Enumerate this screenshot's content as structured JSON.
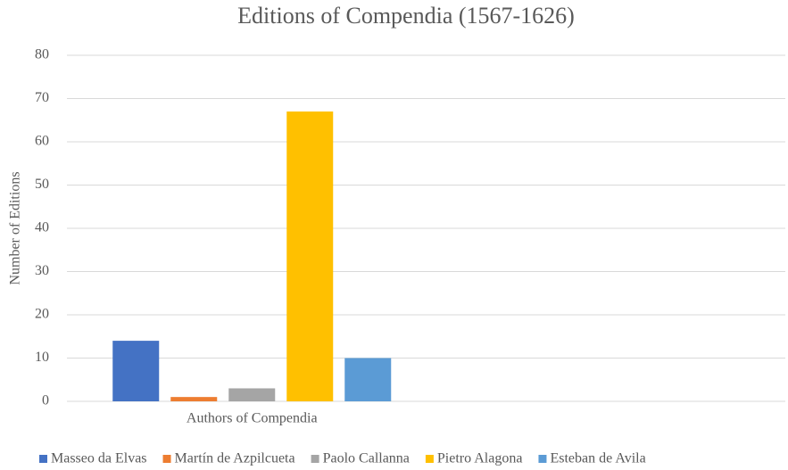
{
  "chart_data": {
    "type": "bar",
    "title": "Editions of Compendia (1567-1626)",
    "y_label": "Number of Editions",
    "categories": [
      "Authors of Compendia",
      null
    ],
    "series": [
      {
        "name": "Masseo da Elvas",
        "color": "#4472c4",
        "values": [
          14,
          null
        ]
      },
      {
        "name": "Martín de Azpilcueta",
        "color": "#ed7d31",
        "values": [
          1,
          null
        ]
      },
      {
        "name": "Paolo Callanna",
        "color": "#a5a5a5",
        "values": [
          3,
          null
        ]
      },
      {
        "name": "Pietro Alagona",
        "color": "#ffc000",
        "values": [
          67,
          null
        ]
      },
      {
        "name": "Esteban de Avila",
        "color": "#5b9bd5",
        "values": [
          10,
          null
        ]
      }
    ],
    "ylim": [
      0,
      80
    ],
    "yticks": [
      0,
      10,
      20,
      30,
      40,
      50,
      60,
      70,
      80
    ],
    "grid": true,
    "legend": "bottom"
  }
}
